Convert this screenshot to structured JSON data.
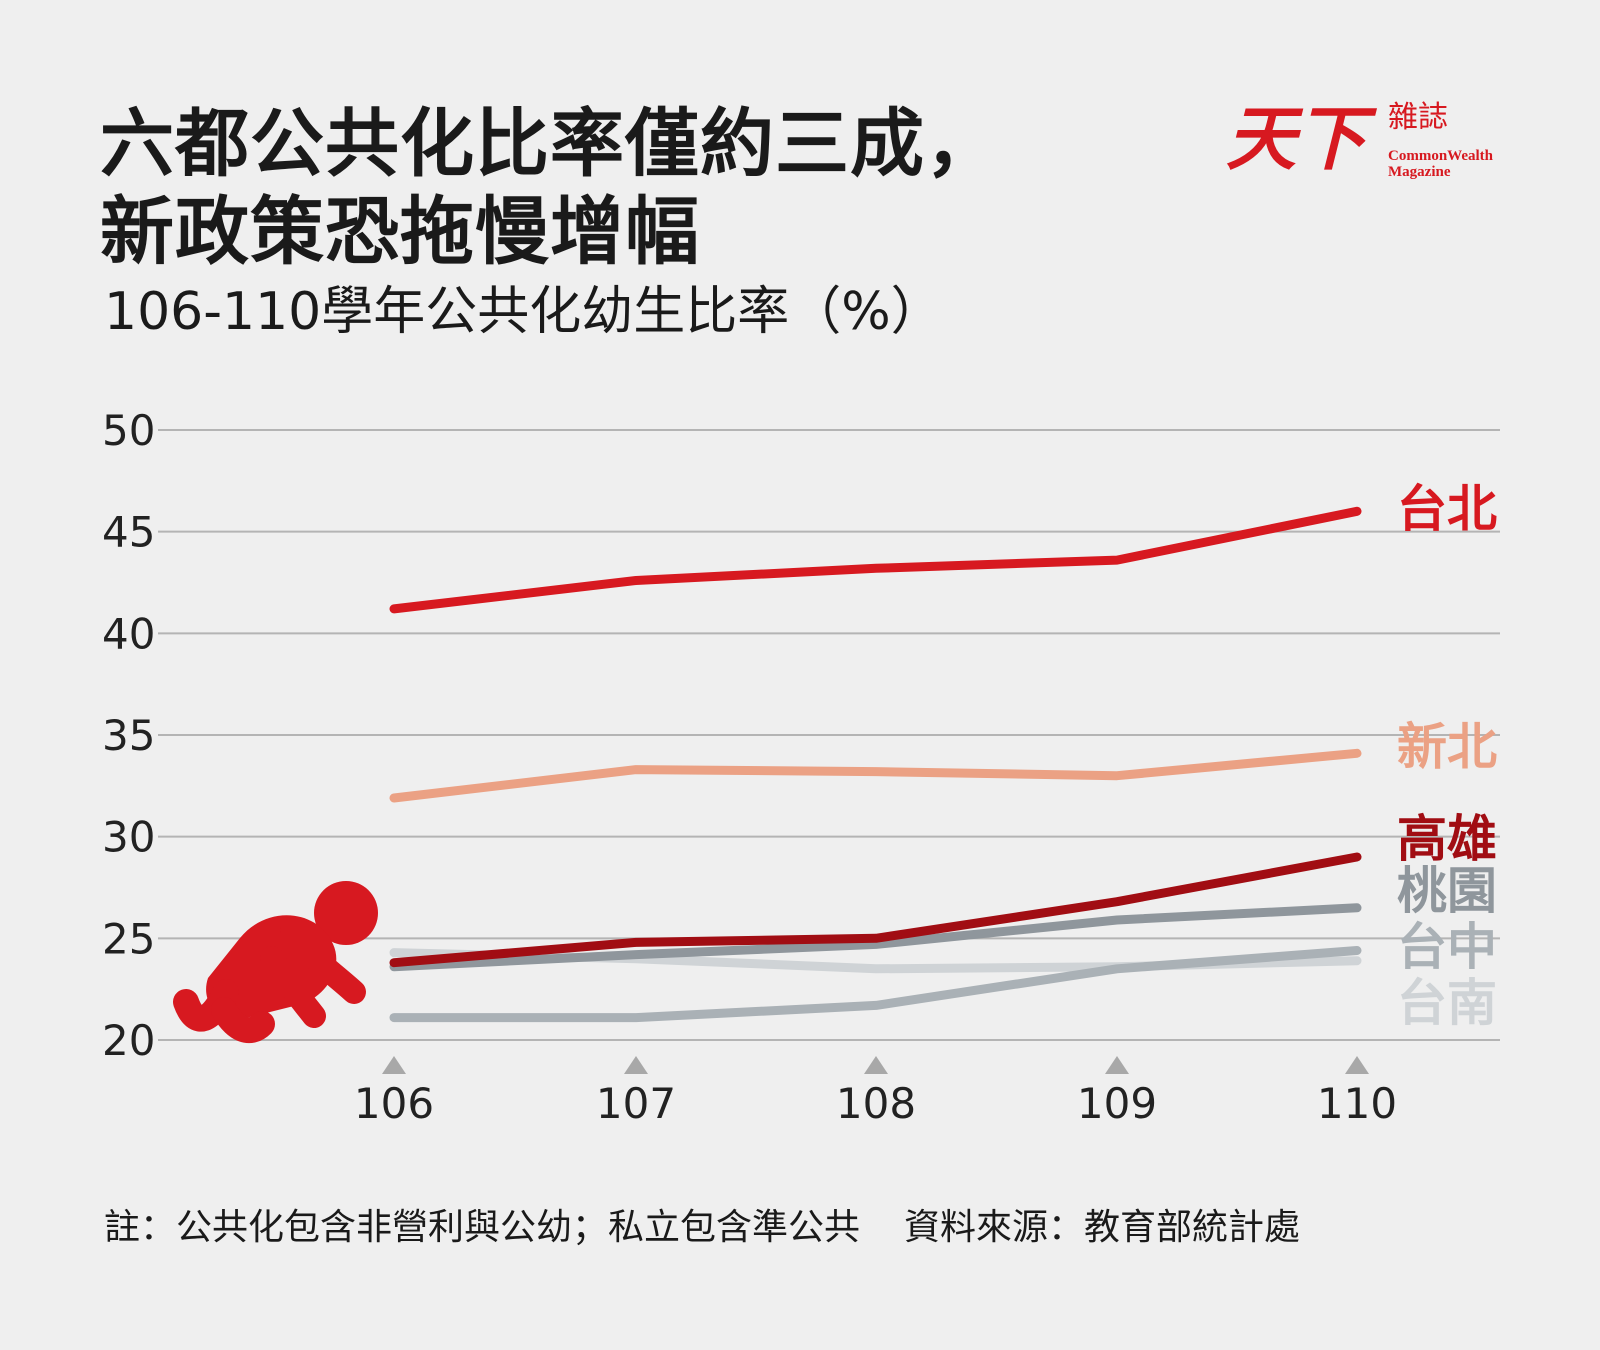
{
  "title": {
    "line1": "六都公共化比率僅約三成，",
    "line2": "新政策恐拖慢增幅"
  },
  "subtitle": "106-110學年公共化幼生比率（%）",
  "logo": {
    "main": "天下",
    "sub": "雜誌",
    "en_line1": "CommonWealth",
    "en_line2": "Magazine"
  },
  "footnote": {
    "note": "註：公共化包含非營利與公幼；私立包含準公共",
    "source": "資料來源：教育部統計處"
  },
  "icon": "crawling-baby-icon",
  "chart_data": {
    "type": "line",
    "x": [
      106,
      107,
      108,
      109,
      110
    ],
    "categories": [
      "106",
      "107",
      "108",
      "109",
      "110"
    ],
    "ylim": [
      20,
      50
    ],
    "yticks": [
      50,
      45,
      40,
      35,
      30,
      25,
      20
    ],
    "grid": true,
    "legend": "inline-right",
    "series": [
      {
        "name": "台北",
        "color": "#d71920",
        "values": [
          41.2,
          42.6,
          43.2,
          43.6,
          46.0
        ]
      },
      {
        "name": "新北",
        "color": "#eba184",
        "values": [
          31.9,
          33.3,
          33.2,
          33.0,
          34.1
        ]
      },
      {
        "name": "高雄",
        "color": "#a10d13",
        "values": [
          23.8,
          24.8,
          25.0,
          26.8,
          29.0
        ]
      },
      {
        "name": "桃園",
        "color": "#8f969c",
        "values": [
          23.6,
          24.2,
          24.7,
          25.9,
          26.5
        ]
      },
      {
        "name": "台中",
        "color": "#aab1b6",
        "values": [
          21.1,
          21.1,
          21.7,
          23.5,
          24.4
        ]
      },
      {
        "name": "台南",
        "color": "#cfd3d6",
        "values": [
          24.3,
          24.0,
          23.5,
          23.6,
          23.9
        ]
      }
    ]
  }
}
